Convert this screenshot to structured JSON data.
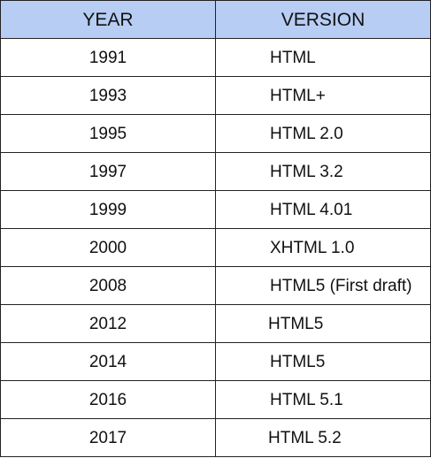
{
  "table": {
    "headers": {
      "year": "YEAR",
      "version": "VERSION"
    },
    "rows": [
      {
        "year": "1991",
        "version": "HTML"
      },
      {
        "year": "1993",
        "version": "HTML+"
      },
      {
        "year": "1995",
        "version": "HTML 2.0"
      },
      {
        "year": "1997",
        "version": "HTML 3.2"
      },
      {
        "year": "1999",
        "version": "HTML 4.01"
      },
      {
        "year": "2000",
        "version": "XHTML 1.0"
      },
      {
        "year": "2008",
        "version": "HTML5 (First draft)"
      },
      {
        "year": "2012",
        "version": "HTML5"
      },
      {
        "year": "2014",
        "version": "HTML5"
      },
      {
        "year": "2016",
        "version": "HTML 5.1"
      },
      {
        "year": "2017",
        "version": "HTML 5.2"
      }
    ]
  },
  "colors": {
    "header_bg": "#b7cdf4",
    "border": "#222222",
    "text": "#111111"
  }
}
